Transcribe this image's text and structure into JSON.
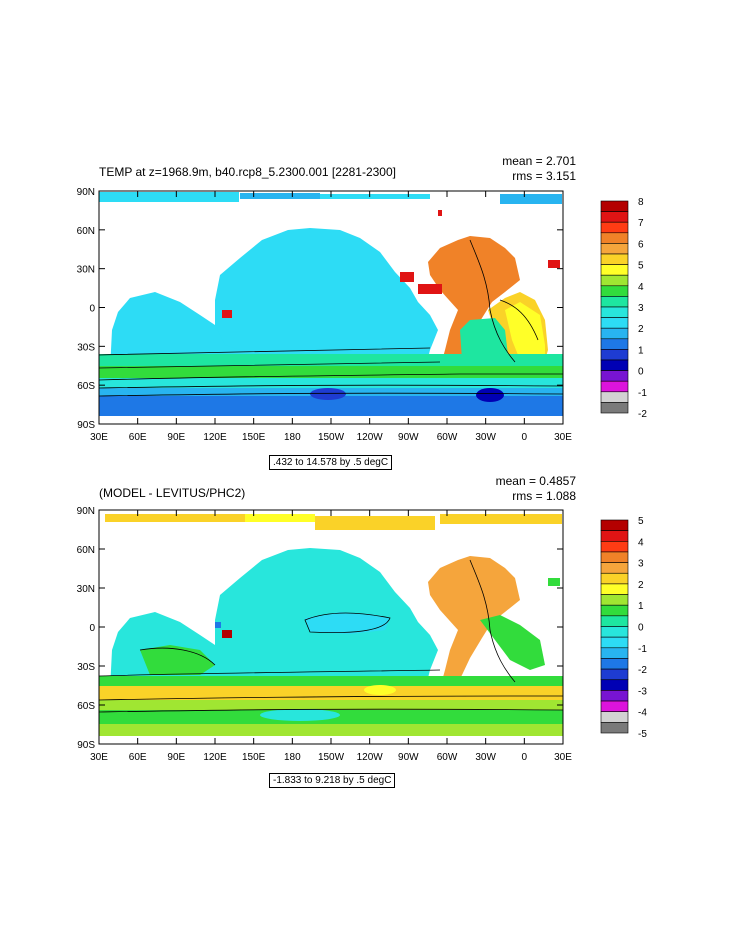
{
  "panels": [
    {
      "title": "TEMP at z=1968.9m, b40.rcp8_5.2300.001 [2281-2300]",
      "mean": "mean = 2.701",
      "rms": "rms = 3.151",
      "info": ".432 to 14.578 by .5 degC"
    },
    {
      "title": "(MODEL - LEVITUS/PHC2)",
      "mean": "mean = 0.4857",
      "rms": "rms = 1.088",
      "info": "-1.833 to 9.218 by .5 degC"
    }
  ],
  "chart_data": [
    {
      "type": "heatmap",
      "title": "TEMP at z=1968.9m, b40.rcp8_5.2300.001 [2281-2300]",
      "subtitle_right": [
        "mean = 2.701",
        "rms = 3.151"
      ],
      "x_tick_labels": [
        "30E",
        "60E",
        "90E",
        "120E",
        "150E",
        "180",
        "150W",
        "120W",
        "90W",
        "60W",
        "30W",
        "0",
        "30E"
      ],
      "y_tick_labels": [
        "90N",
        "60N",
        "30N",
        "0",
        "30S",
        "60S",
        "90S"
      ],
      "xlim": [
        30,
        390
      ],
      "ylim": [
        -90,
        90
      ],
      "colorbar_labels": [
        "8",
        "7",
        "6",
        "5",
        "4",
        "3",
        "2",
        "1",
        "0",
        "-1",
        "-2"
      ],
      "colorbar_colors": [
        "#b40000",
        "#e01414",
        "#ff3c14",
        "#f08228",
        "#f5a53c",
        "#fad228",
        "#ffff28",
        "#a0e632",
        "#32dc3c",
        "#1ee6a0",
        "#28e6dc",
        "#2ddcf5",
        "#28b4f0",
        "#1e78e6",
        "#1e3cd2",
        "#0000b4",
        "#7814d2",
        "#dc14dc",
        "#d2d2d2",
        "#7a7a7a"
      ],
      "contour_info": ".432 to 14.578 by .5 degC"
    },
    {
      "type": "heatmap",
      "title": "(MODEL - LEVITUS/PHC2)",
      "subtitle_right": [
        "mean = 0.4857",
        "rms = 1.088"
      ],
      "x_tick_labels": [
        "30E",
        "60E",
        "90E",
        "120E",
        "150E",
        "180",
        "150W",
        "120W",
        "90W",
        "60W",
        "30W",
        "0",
        "30E"
      ],
      "y_tick_labels": [
        "90N",
        "60N",
        "30N",
        "0",
        "30S",
        "60S",
        "90S"
      ],
      "xlim": [
        30,
        390
      ],
      "ylim": [
        -90,
        90
      ],
      "colorbar_labels": [
        "5",
        "4",
        "3",
        "2",
        "1",
        "0",
        "-1",
        "-2",
        "-3",
        "-4",
        "-5"
      ],
      "colorbar_colors": [
        "#b40000",
        "#e01414",
        "#ff3c14",
        "#f08228",
        "#f5a53c",
        "#fad228",
        "#ffff28",
        "#a0e632",
        "#32dc3c",
        "#1ee6a0",
        "#28e6dc",
        "#2ddcf5",
        "#28b4f0",
        "#1e78e6",
        "#1e3cd2",
        "#0000b4",
        "#7814d2",
        "#dc14dc",
        "#d2d2d2",
        "#7a7a7a"
      ],
      "contour_info": "-1.833 to 9.218 by .5 degC"
    }
  ]
}
